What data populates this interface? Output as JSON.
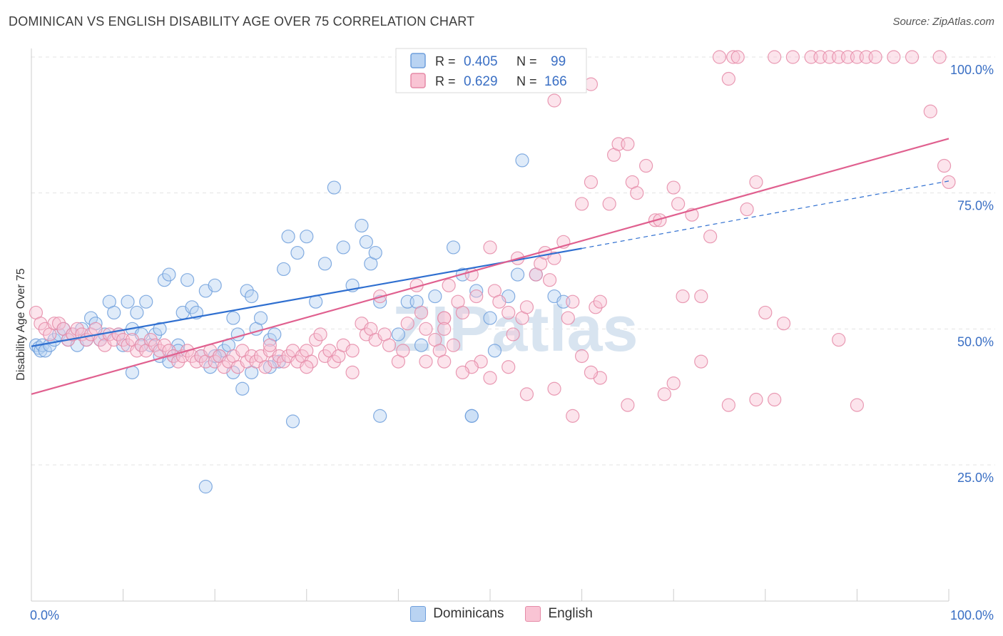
{
  "title": "DOMINICAN VS ENGLISH DISABILITY AGE OVER 75 CORRELATION CHART",
  "source": "Source: ZipAtlas.com",
  "colors": {
    "blue": "#6f9fdc",
    "blue_fill": "#b9d3f2",
    "blue_line": "#2f6fd0",
    "pink": "#e58aa7",
    "pink_fill": "#f9c4d4",
    "pink_line": "#e0608f",
    "tick_label": "#3a6fc4"
  },
  "legend_box": {
    "rows": [
      {
        "r_label": "R =",
        "r_value": "0.405",
        "n_label": "N =",
        "n_value": "99"
      },
      {
        "r_label": "R =",
        "r_value": "0.629",
        "n_label": "N =",
        "n_value": "166"
      }
    ]
  },
  "bottom_legend": {
    "dominicans": "Dominicans",
    "english": "English"
  },
  "chart_data": {
    "type": "scatter",
    "watermark": "ZIPatlas",
    "ylabel": "Disability Age Over 75",
    "xlabel": "",
    "x_tick_labels": {
      "left": "0.0%",
      "right": "100.0%"
    },
    "y_tick_labels": [
      "100.0%",
      "75.0%",
      "50.0%",
      "25.0%"
    ],
    "y_tick_values": [
      100,
      75,
      50,
      25
    ],
    "xlim": [
      0,
      100
    ],
    "ylim": [
      2,
      102
    ],
    "grid": true,
    "legend_position": "top-center",
    "series": [
      {
        "name": "Dominicans",
        "color": "blue",
        "trend": {
          "x0": 0,
          "y0": 46.8,
          "x1": 60,
          "y1": 64.8,
          "dash_x1": 100,
          "dash_y1": 77.2
        },
        "points": [
          [
            0.5,
            47
          ],
          [
            0.8,
            46.5
          ],
          [
            1,
            46
          ],
          [
            1.2,
            47
          ],
          [
            1.5,
            46
          ],
          [
            2,
            47
          ],
          [
            2.5,
            48
          ],
          [
            3,
            49
          ],
          [
            3.5,
            50
          ],
          [
            4,
            48
          ],
          [
            4.5,
            49
          ],
          [
            5,
            47
          ],
          [
            5.5,
            50
          ],
          [
            6,
            48
          ],
          [
            6.5,
            52
          ],
          [
            7,
            51
          ],
          [
            7.5,
            48
          ],
          [
            8,
            49
          ],
          [
            8.5,
            55
          ],
          [
            9,
            53
          ],
          [
            9.5,
            49
          ],
          [
            10,
            47
          ],
          [
            10.5,
            55
          ],
          [
            11,
            50
          ],
          [
            11.5,
            53
          ],
          [
            12,
            49
          ],
          [
            12.5,
            55
          ],
          [
            13,
            47
          ],
          [
            13.5,
            49
          ],
          [
            14,
            50
          ],
          [
            14.5,
            59
          ],
          [
            15,
            60
          ],
          [
            15.5,
            45
          ],
          [
            16,
            47
          ],
          [
            16.5,
            53
          ],
          [
            17,
            59
          ],
          [
            17.5,
            54
          ],
          [
            18,
            53
          ],
          [
            18.5,
            45
          ],
          [
            19,
            57
          ],
          [
            19.5,
            43
          ],
          [
            20,
            58
          ],
          [
            20.5,
            45
          ],
          [
            21,
            46
          ],
          [
            21.5,
            47
          ],
          [
            22,
            52
          ],
          [
            22.5,
            49
          ],
          [
            23,
            39
          ],
          [
            23.5,
            57
          ],
          [
            24,
            56
          ],
          [
            24.5,
            50
          ],
          [
            25,
            52
          ],
          [
            26,
            48
          ],
          [
            26.5,
            49
          ],
          [
            27,
            44
          ],
          [
            27.5,
            61
          ],
          [
            28,
            67
          ],
          [
            29,
            64
          ],
          [
            30,
            67
          ],
          [
            31,
            55
          ],
          [
            32,
            62
          ],
          [
            33,
            76
          ],
          [
            34,
            65
          ],
          [
            35,
            58
          ],
          [
            36,
            69
          ],
          [
            36.5,
            66
          ],
          [
            37,
            62
          ],
          [
            37.5,
            64
          ],
          [
            38,
            55
          ],
          [
            40,
            49
          ],
          [
            41,
            55
          ],
          [
            42,
            55
          ],
          [
            42.5,
            47
          ],
          [
            44,
            56
          ],
          [
            46,
            65
          ],
          [
            47,
            60
          ],
          [
            48,
            34
          ],
          [
            48.5,
            57
          ],
          [
            50,
            52
          ],
          [
            50.5,
            46
          ],
          [
            52,
            56
          ],
          [
            53,
            60
          ],
          [
            53.5,
            81
          ],
          [
            55,
            60
          ],
          [
            57,
            56
          ],
          [
            58,
            55
          ],
          [
            19,
            21
          ],
          [
            24,
            42
          ],
          [
            22,
            42
          ],
          [
            11,
            42
          ],
          [
            14,
            45
          ],
          [
            12,
            47
          ],
          [
            38,
            34
          ],
          [
            28.5,
            33
          ],
          [
            48,
            34
          ],
          [
            20,
            45
          ],
          [
            15,
            44
          ],
          [
            16,
            46
          ],
          [
            26,
            43
          ]
        ]
      },
      {
        "name": "English",
        "color": "pink",
        "trend": {
          "x0": 0,
          "y0": 38,
          "x1": 100,
          "y1": 85
        },
        "points": [
          [
            0.5,
            53
          ],
          [
            1,
            51
          ],
          [
            1.5,
            50
          ],
          [
            2,
            49
          ],
          [
            2.5,
            51
          ],
          [
            3,
            51
          ],
          [
            3.5,
            50
          ],
          [
            4,
            48
          ],
          [
            4.5,
            49
          ],
          [
            5,
            50
          ],
          [
            5.5,
            49
          ],
          [
            6,
            48
          ],
          [
            6.5,
            49
          ],
          [
            7,
            50
          ],
          [
            7.5,
            48
          ],
          [
            8,
            47
          ],
          [
            8.5,
            49
          ],
          [
            9,
            48
          ],
          [
            9.5,
            49
          ],
          [
            10,
            48
          ],
          [
            10.5,
            47
          ],
          [
            11,
            48
          ],
          [
            11.5,
            46
          ],
          [
            12,
            47
          ],
          [
            12.5,
            46
          ],
          [
            13,
            48
          ],
          [
            13.5,
            47
          ],
          [
            14,
            46
          ],
          [
            14.5,
            47
          ],
          [
            15,
            46
          ],
          [
            15.5,
            45
          ],
          [
            16,
            44
          ],
          [
            16.5,
            45
          ],
          [
            17,
            46
          ],
          [
            17.5,
            45
          ],
          [
            18,
            44
          ],
          [
            18.5,
            45
          ],
          [
            19,
            44
          ],
          [
            19.5,
            46
          ],
          [
            20,
            44
          ],
          [
            20.5,
            45
          ],
          [
            21,
            43
          ],
          [
            21.5,
            44
          ],
          [
            22,
            45
          ],
          [
            22.5,
            43
          ],
          [
            23,
            46
          ],
          [
            23.5,
            44
          ],
          [
            24,
            45
          ],
          [
            24.5,
            44
          ],
          [
            25,
            45
          ],
          [
            25.5,
            43
          ],
          [
            26,
            46
          ],
          [
            26.5,
            44
          ],
          [
            27,
            45
          ],
          [
            27.5,
            44
          ],
          [
            28,
            45
          ],
          [
            28.5,
            46
          ],
          [
            29,
            44
          ],
          [
            29.5,
            45
          ],
          [
            30,
            46
          ],
          [
            30.5,
            44
          ],
          [
            31,
            48
          ],
          [
            31.5,
            49
          ],
          [
            32,
            45
          ],
          [
            32.5,
            46
          ],
          [
            33,
            44
          ],
          [
            33.5,
            45
          ],
          [
            34,
            47
          ],
          [
            35,
            46
          ],
          [
            36,
            51
          ],
          [
            36.5,
            49
          ],
          [
            37,
            50
          ],
          [
            37.5,
            48
          ],
          [
            38,
            56
          ],
          [
            38.5,
            49
          ],
          [
            39,
            47
          ],
          [
            40,
            44
          ],
          [
            40.5,
            46
          ],
          [
            41,
            51
          ],
          [
            42,
            58
          ],
          [
            42.5,
            53
          ],
          [
            43,
            44
          ],
          [
            44,
            48
          ],
          [
            44.5,
            46
          ],
          [
            45,
            52
          ],
          [
            45.5,
            58
          ],
          [
            46,
            47
          ],
          [
            46.5,
            55
          ],
          [
            47,
            53
          ],
          [
            48,
            60
          ],
          [
            48.5,
            56
          ],
          [
            49,
            44
          ],
          [
            50,
            65
          ],
          [
            50.5,
            57
          ],
          [
            51,
            55
          ],
          [
            52,
            53
          ],
          [
            52.5,
            49
          ],
          [
            53,
            63
          ],
          [
            53.5,
            52
          ],
          [
            54,
            54
          ],
          [
            55,
            60
          ],
          [
            55.5,
            62
          ],
          [
            56,
            64
          ],
          [
            56.5,
            59
          ],
          [
            57,
            63
          ],
          [
            58,
            66
          ],
          [
            58.5,
            52
          ],
          [
            59,
            55
          ],
          [
            60,
            73
          ],
          [
            61,
            77
          ],
          [
            61.5,
            54
          ],
          [
            62,
            55
          ],
          [
            63,
            73
          ],
          [
            63.5,
            82
          ],
          [
            64,
            84
          ],
          [
            65,
            84
          ],
          [
            65.5,
            77
          ],
          [
            66,
            75
          ],
          [
            67,
            80
          ],
          [
            68,
            70
          ],
          [
            68.5,
            70
          ],
          [
            70,
            76
          ],
          [
            70.5,
            73
          ],
          [
            71,
            56
          ],
          [
            72,
            71
          ],
          [
            73,
            56
          ],
          [
            74,
            67
          ],
          [
            75,
            100
          ],
          [
            76,
            96
          ],
          [
            76.5,
            100
          ],
          [
            77,
            100
          ],
          [
            78,
            72
          ],
          [
            79,
            77
          ],
          [
            80,
            53
          ],
          [
            81,
            100
          ],
          [
            82,
            51
          ],
          [
            83,
            100
          ],
          [
            85,
            100
          ],
          [
            86,
            100
          ],
          [
            87,
            100
          ],
          [
            88,
            100
          ],
          [
            89,
            100
          ],
          [
            90,
            100
          ],
          [
            91,
            100
          ],
          [
            92,
            100
          ],
          [
            94,
            100
          ],
          [
            96,
            100
          ],
          [
            98,
            90
          ],
          [
            99,
            100
          ],
          [
            100,
            77
          ],
          [
            99.5,
            80
          ],
          [
            57,
            92
          ],
          [
            59,
            98
          ],
          [
            61,
            95
          ],
          [
            45,
            52
          ],
          [
            48,
            43
          ],
          [
            54,
            38
          ],
          [
            45,
            44
          ],
          [
            35,
            42
          ],
          [
            30,
            43
          ],
          [
            26,
            47
          ],
          [
            73,
            44
          ],
          [
            70,
            40
          ],
          [
            76,
            36
          ],
          [
            79,
            37
          ],
          [
            81,
            37
          ],
          [
            90,
            36
          ],
          [
            88,
            48
          ],
          [
            62,
            41
          ],
          [
            65,
            36
          ],
          [
            69,
            38
          ],
          [
            59,
            34
          ],
          [
            57,
            39
          ],
          [
            61,
            42
          ],
          [
            60,
            45
          ],
          [
            52,
            43
          ],
          [
            50,
            41
          ],
          [
            47,
            42
          ],
          [
            45,
            50
          ],
          [
            43,
            50
          ]
        ]
      }
    ]
  }
}
